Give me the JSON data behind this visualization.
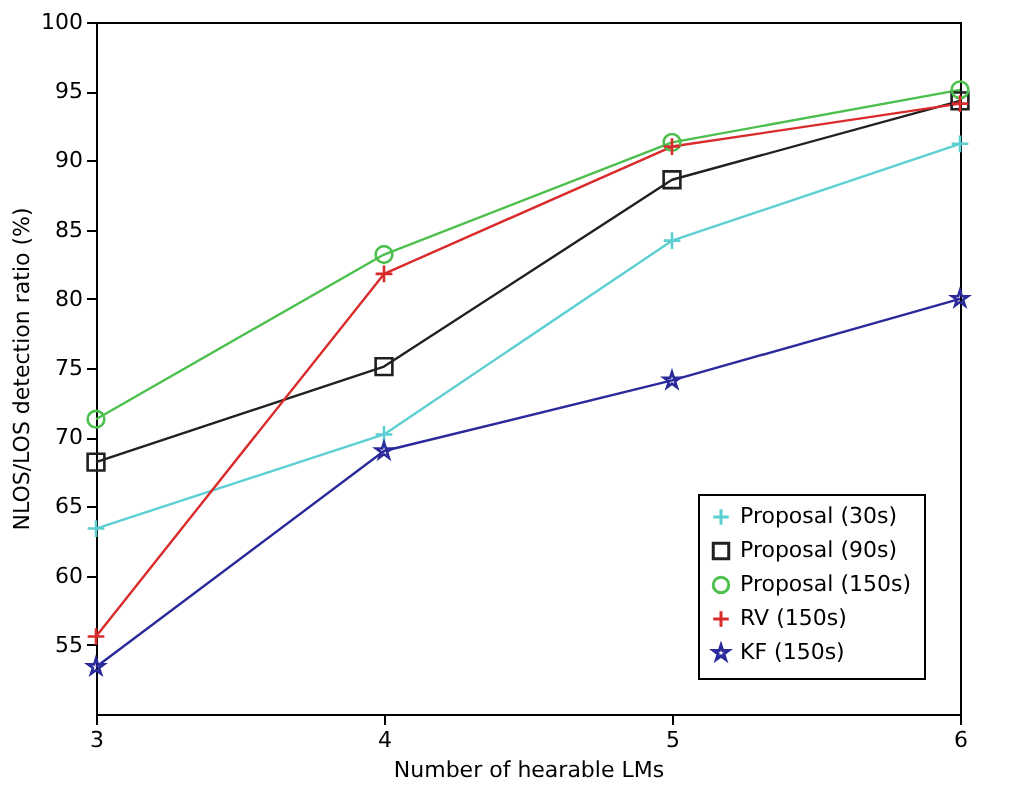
{
  "chart_data": {
    "type": "line",
    "xlabel": "Number of hearable LMs",
    "ylabel": "NLOS/LOS detection ratio (%)",
    "x": [
      3,
      4,
      5,
      6
    ],
    "xlim": [
      3,
      6
    ],
    "xticks": [
      3,
      4,
      5,
      6
    ],
    "ylim": [
      50,
      100
    ],
    "yticks": [
      55,
      60,
      65,
      70,
      75,
      80,
      85,
      90,
      95,
      100
    ],
    "grid": false,
    "legend": "bottom right",
    "line_style": "solid",
    "series": [
      {
        "name": "Proposal (30s)",
        "color": "#5ccfd2",
        "marker": "cross",
        "values": [
          63.4,
          70.2,
          84.2,
          91.2
        ]
      },
      {
        "name": "Proposal (90s)",
        "color": "#202020",
        "marker": "square",
        "values": [
          68.2,
          75.1,
          88.6,
          94.3
        ]
      },
      {
        "name": "Proposal (150s)",
        "color": "#4cbf4c",
        "marker": "circle",
        "values": [
          71.3,
          83.2,
          91.3,
          95.1
        ]
      },
      {
        "name": "RV (150s)",
        "color": "#d92b2b",
        "marker": "cross",
        "values": [
          55.6,
          81.8,
          91.0,
          94.1
        ]
      },
      {
        "name": "KF (150s)",
        "color": "#2a2a9c",
        "marker": "star",
        "values": [
          53.4,
          69.0,
          74.1,
          80.0
        ]
      }
    ]
  }
}
